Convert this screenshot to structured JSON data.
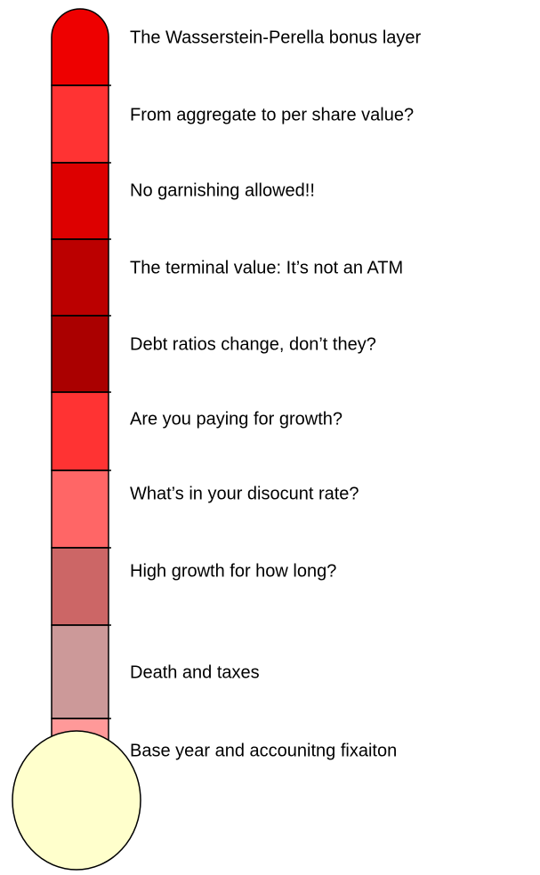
{
  "levels": [
    {
      "label": "The Wasserstein-Perella bonus layer"
    },
    {
      "label": "From aggregate to per share value?"
    },
    {
      "label": "No garnishing allowed!!"
    },
    {
      "label": "The terminal value: It’s not an ATM"
    },
    {
      "label": "Debt ratios change, don’t they?"
    },
    {
      "label": "Are you paying for growth?"
    },
    {
      "label": "What’s in your disocunt rate?"
    },
    {
      "label": "High growth for how long?"
    },
    {
      "label": "Death and taxes"
    },
    {
      "label": "Base year and accounitng fixaiton"
    }
  ]
}
